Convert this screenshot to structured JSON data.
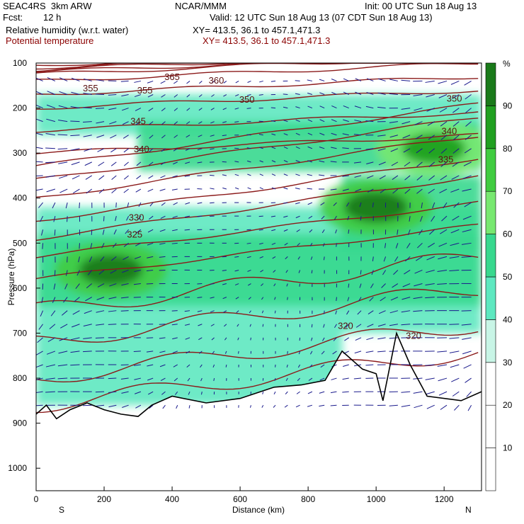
{
  "header": {
    "title_left": "SEAC4RS  3km ARW",
    "center": "NCAR/MMM",
    "init": "Init: 00 UTC Sun 18 Aug 13",
    "fcst_label": "Fcst:",
    "fcst_value": "12 h",
    "valid": "Valid: 12 UTC Sun 18 Aug 13 (07 CDT Sun 18 Aug 13)",
    "field1": "Relative humidity (w.r.t. water)",
    "field1_xy": "XY= 413.5, 36.1 to 457.1,471.3",
    "field2": "Potential temperature",
    "field2_xy": "XY= 413.5, 36.1 to 457.1,471.3"
  },
  "colors": {
    "theta_line": "#8b1a1a",
    "terrain": "#000000",
    "wind": "#1a1a8c",
    "rh_scale": [
      "#ffffff",
      "#ffffff",
      "#ffffff",
      "#c8f5e6",
      "#5ee8c0",
      "#38d88e",
      "#78e870",
      "#40cc40",
      "#20a020",
      "#1a7a1a"
    ]
  },
  "chart_data": {
    "type": "heatmap",
    "title": "",
    "xlabel": "Distance (km)",
    "ylabel": "Pressure (hPa)",
    "xlim": [
      0,
      1310
    ],
    "ylim": [
      1050,
      100
    ],
    "x_ticks": [
      "0",
      "200",
      "400",
      "600",
      "800",
      "1000",
      "1200"
    ],
    "x_tick_values": [
      0,
      200,
      400,
      600,
      800,
      1000,
      1200
    ],
    "y_ticks": [
      "100",
      "200",
      "300",
      "400",
      "500",
      "600",
      "700",
      "800",
      "900",
      "1000"
    ],
    "y_tick_values": [
      100,
      200,
      300,
      400,
      500,
      600,
      700,
      800,
      900,
      1000
    ],
    "endpoint_left": "S",
    "endpoint_right": "N",
    "colorbar": {
      "unit": "%",
      "levels": [
        0,
        10,
        20,
        30,
        40,
        50,
        60,
        70,
        80,
        90,
        100
      ],
      "labels": [
        "10",
        "20",
        "30",
        "40",
        "50",
        "60",
        "70",
        "80",
        "90"
      ]
    },
    "theta_contours": [
      {
        "label": "365",
        "km": 400,
        "p": 130
      },
      {
        "label": "360",
        "km": 530,
        "p": 138
      },
      {
        "label": "355",
        "km": 160,
        "p": 155
      },
      {
        "label": "355",
        "km": 320,
        "p": 160
      },
      {
        "label": "350",
        "km": 620,
        "p": 180
      },
      {
        "label": "350",
        "km": 1230,
        "p": 178
      },
      {
        "label": "345",
        "km": 300,
        "p": 228
      },
      {
        "label": "340",
        "km": 310,
        "p": 290
      },
      {
        "label": "340",
        "km": 1215,
        "p": 250
      },
      {
        "label": "335",
        "km": 1205,
        "p": 313
      },
      {
        "label": "330",
        "km": 295,
        "p": 442
      },
      {
        "label": "325",
        "km": 290,
        "p": 480
      },
      {
        "label": "320",
        "km": 910,
        "p": 683
      },
      {
        "label": "320",
        "km": 1110,
        "p": 705
      }
    ],
    "rh_maxima": [
      {
        "km": 220,
        "p": 560,
        "rh": 92
      },
      {
        "km": 1000,
        "p": 420,
        "rh": 92
      },
      {
        "km": 1170,
        "p": 290,
        "rh": 80
      }
    ],
    "terrain_pressure": [
      {
        "km": 0,
        "p": 880
      },
      {
        "km": 30,
        "p": 860
      },
      {
        "km": 60,
        "p": 890
      },
      {
        "km": 100,
        "p": 870
      },
      {
        "km": 150,
        "p": 855
      },
      {
        "km": 200,
        "p": 870
      },
      {
        "km": 250,
        "p": 880
      },
      {
        "km": 300,
        "p": 885
      },
      {
        "km": 340,
        "p": 860
      },
      {
        "km": 400,
        "p": 840
      },
      {
        "km": 500,
        "p": 855
      },
      {
        "km": 600,
        "p": 845
      },
      {
        "km": 700,
        "p": 820
      },
      {
        "km": 780,
        "p": 815
      },
      {
        "km": 850,
        "p": 805
      },
      {
        "km": 900,
        "p": 740
      },
      {
        "km": 960,
        "p": 780
      },
      {
        "km": 1000,
        "p": 790
      },
      {
        "km": 1020,
        "p": 850
      },
      {
        "km": 1060,
        "p": 700
      },
      {
        "km": 1100,
        "p": 770
      },
      {
        "km": 1150,
        "p": 840
      },
      {
        "km": 1250,
        "p": 850
      },
      {
        "km": 1310,
        "p": 830
      }
    ]
  }
}
